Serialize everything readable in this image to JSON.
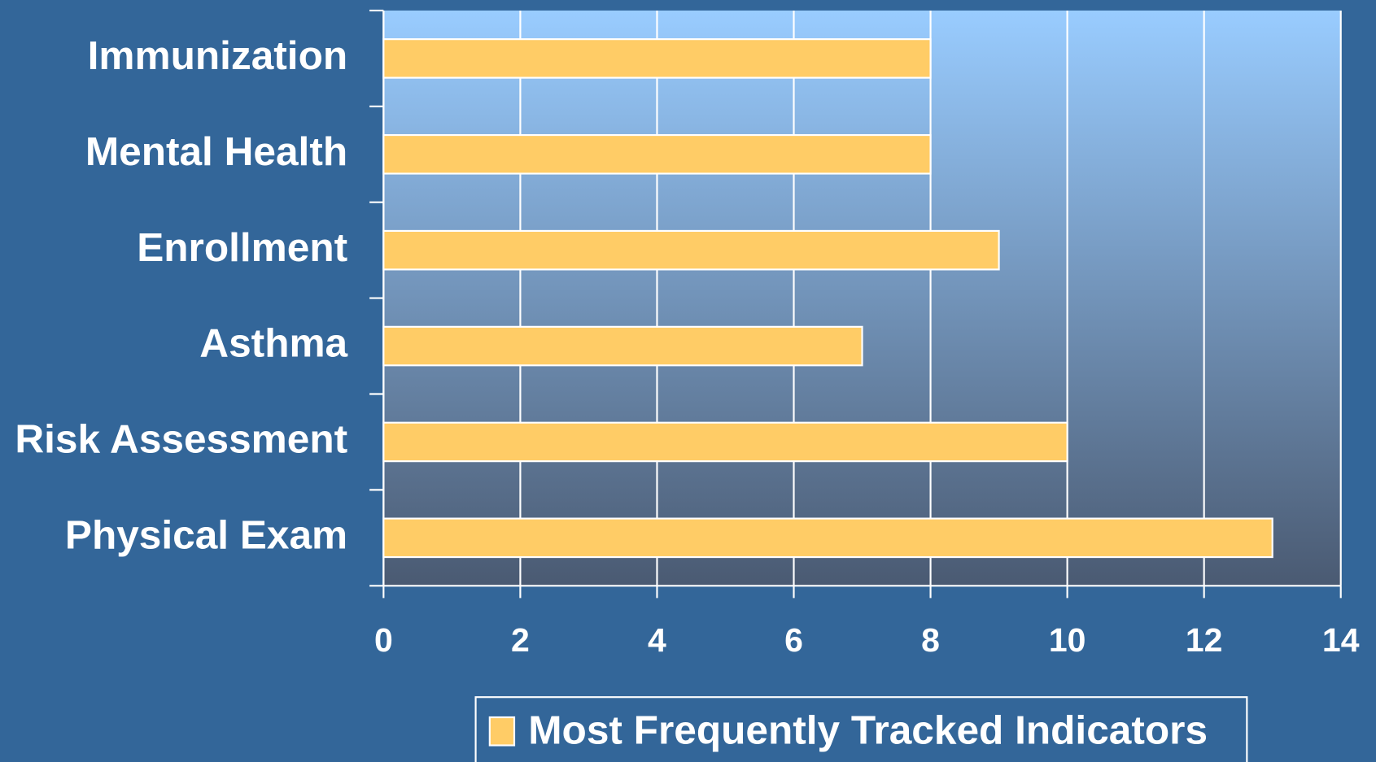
{
  "chart_data": {
    "type": "bar",
    "orientation": "horizontal",
    "categories": [
      "Immunization",
      "Mental Health",
      "Enrollment",
      "Asthma",
      "Risk Assessment",
      "Physical Exam"
    ],
    "series": [
      {
        "name": "Most Frequently Tracked Indicators",
        "color": "#ffcc66",
        "values": [
          8,
          8,
          9,
          7,
          10,
          13
        ]
      }
    ],
    "xlim": [
      0,
      14
    ],
    "xticks": [
      0,
      2,
      4,
      6,
      8,
      10,
      12,
      14
    ],
    "grid": true,
    "legend": "bottom"
  }
}
